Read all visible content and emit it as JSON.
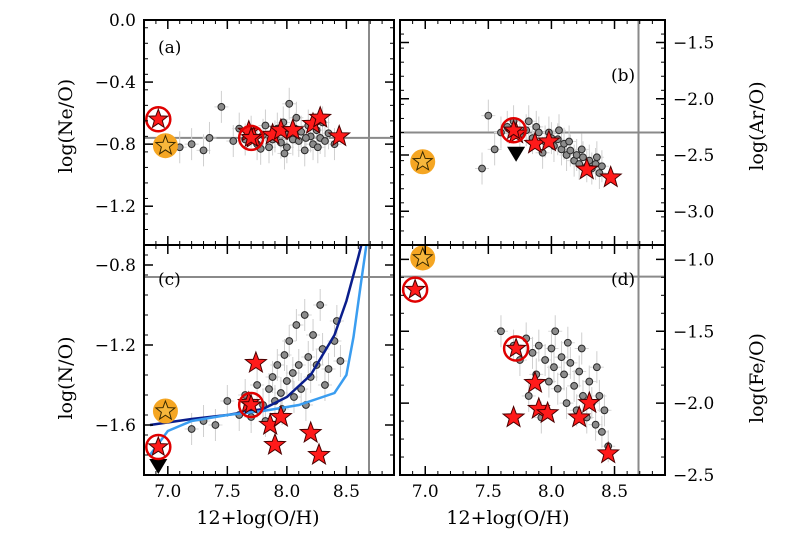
{
  "chart_data": [
    {
      "panel": "a",
      "type": "scatter",
      "letter": "(a)",
      "ylabel": "log(Ne/O)",
      "y_axis_side": "left",
      "xlim": [
        6.8,
        8.9
      ],
      "ylim": [
        -1.45,
        0.0
      ],
      "xticks": [
        7.0,
        7.5,
        8.0,
        8.5
      ],
      "yticks": [
        0.0,
        -0.4,
        -0.8,
        -1.2
      ],
      "ytick_labels": [
        "0.0",
        "−0.4",
        "−0.8",
        "−1.2"
      ],
      "hline": -0.76,
      "vline": 8.69,
      "sample": [
        [
          7.1,
          -0.82
        ],
        [
          7.2,
          -0.8
        ],
        [
          7.3,
          -0.84
        ],
        [
          7.35,
          -0.76
        ],
        [
          7.45,
          -0.56
        ],
        [
          7.55,
          -0.78
        ],
        [
          7.6,
          -0.7
        ],
        [
          7.65,
          -0.77
        ],
        [
          7.7,
          -0.72
        ],
        [
          7.75,
          -0.8
        ],
        [
          7.8,
          -0.74
        ],
        [
          7.82,
          -0.68
        ],
        [
          7.85,
          -0.82
        ],
        [
          7.9,
          -0.75
        ],
        [
          7.92,
          -0.7
        ],
        [
          7.95,
          -0.79
        ],
        [
          7.97,
          -0.66
        ],
        [
          8.0,
          -0.74
        ],
        [
          8.0,
          -0.82
        ],
        [
          8.02,
          -0.54
        ],
        [
          8.05,
          -0.77
        ],
        [
          8.07,
          -0.7
        ],
        [
          8.1,
          -0.78
        ],
        [
          8.12,
          -0.72
        ],
        [
          8.15,
          -0.84
        ],
        [
          8.18,
          -0.68
        ],
        [
          8.2,
          -0.75
        ],
        [
          8.22,
          -0.8
        ],
        [
          8.25,
          -0.71
        ],
        [
          8.28,
          -0.76
        ],
        [
          8.3,
          -0.66
        ],
        [
          8.32,
          -0.78
        ],
        [
          8.35,
          -0.73
        ],
        [
          8.4,
          -0.8
        ],
        [
          7.88,
          -0.77
        ],
        [
          7.78,
          -0.83
        ],
        [
          8.08,
          -0.63
        ],
        [
          8.16,
          -0.76
        ],
        [
          7.98,
          -0.86
        ],
        [
          8.26,
          -0.82
        ]
      ],
      "red_stars": [
        [
          7.68,
          -0.72
        ],
        [
          7.72,
          -0.76
        ],
        [
          7.88,
          -0.74
        ],
        [
          7.95,
          -0.71
        ],
        [
          8.05,
          -0.71
        ],
        [
          8.22,
          -0.67
        ],
        [
          8.28,
          -0.63
        ],
        [
          8.44,
          -0.75
        ]
      ],
      "red_circled": [
        [
          6.92,
          -0.64
        ],
        [
          7.7,
          -0.76
        ]
      ],
      "orange_circled": [
        [
          6.98,
          -0.81
        ]
      ]
    },
    {
      "panel": "b",
      "type": "scatter",
      "letter": "(b)",
      "ylabel": "log(Ar/O)",
      "y_axis_side": "right",
      "xlim": [
        6.8,
        8.9
      ],
      "ylim": [
        -3.3,
        -1.3
      ],
      "xticks": [
        7.0,
        7.5,
        8.0,
        8.5
      ],
      "yticks": [
        -1.5,
        -2.0,
        -2.5,
        -3.0
      ],
      "ytick_labels": [
        "−1.5",
        "−2.0",
        "−2.5",
        "−3.0"
      ],
      "hline": -2.3,
      "vline": 8.69,
      "sample": [
        [
          7.5,
          -2.15
        ],
        [
          7.6,
          -2.3
        ],
        [
          7.65,
          -2.25
        ],
        [
          7.7,
          -2.2
        ],
        [
          7.75,
          -2.32
        ],
        [
          7.8,
          -2.28
        ],
        [
          7.85,
          -2.35
        ],
        [
          7.88,
          -2.25
        ],
        [
          7.9,
          -2.3
        ],
        [
          7.95,
          -2.38
        ],
        [
          7.98,
          -2.3
        ],
        [
          8.0,
          -2.35
        ],
        [
          8.02,
          -2.42
        ],
        [
          8.05,
          -2.36
        ],
        [
          8.08,
          -2.45
        ],
        [
          8.1,
          -2.4
        ],
        [
          8.12,
          -2.5
        ],
        [
          8.15,
          -2.46
        ],
        [
          8.18,
          -2.55
        ],
        [
          8.2,
          -2.5
        ],
        [
          8.22,
          -2.58
        ],
        [
          8.25,
          -2.52
        ],
        [
          8.28,
          -2.6
        ],
        [
          8.3,
          -2.55
        ],
        [
          8.32,
          -2.62
        ],
        [
          8.35,
          -2.58
        ],
        [
          8.38,
          -2.66
        ],
        [
          8.4,
          -2.6
        ],
        [
          7.55,
          -2.45
        ],
        [
          7.82,
          -2.2
        ],
        [
          8.06,
          -2.28
        ],
        [
          8.14,
          -2.38
        ],
        [
          8.24,
          -2.45
        ],
        [
          7.93,
          -2.48
        ],
        [
          8.36,
          -2.52
        ],
        [
          7.45,
          -2.62
        ]
      ],
      "red_stars": [
        [
          7.72,
          -2.31
        ],
        [
          7.87,
          -2.4
        ],
        [
          7.98,
          -2.38
        ],
        [
          8.28,
          -2.63
        ],
        [
          8.47,
          -2.7
        ]
      ],
      "red_circled": [
        [
          7.7,
          -2.28
        ]
      ],
      "orange_circled": [
        [
          6.98,
          -2.56
        ]
      ],
      "upper_limits": [
        [
          7.72,
          -2.48
        ]
      ]
    },
    {
      "panel": "c",
      "type": "scatter",
      "letter": "(c)",
      "ylabel": "log(N/O)",
      "xlabel": "12+log(O/H)",
      "y_axis_side": "left",
      "xlim": [
        6.8,
        8.9
      ],
      "ylim": [
        -1.85,
        -0.7
      ],
      "xticks": [
        7.0,
        7.5,
        8.0,
        8.5
      ],
      "xtick_labels": [
        "7.0",
        "7.5",
        "8.0",
        "8.5"
      ],
      "yticks": [
        -0.8,
        -1.2,
        -1.6
      ],
      "ytick_labels": [
        "−0.8",
        "−1.2",
        "−1.6"
      ],
      "hline": -0.86,
      "vline": 8.69,
      "sample": [
        [
          7.2,
          -1.62
        ],
        [
          7.3,
          -1.58
        ],
        [
          7.4,
          -1.6
        ],
        [
          7.5,
          -1.48
        ],
        [
          7.6,
          -1.55
        ],
        [
          7.65,
          -1.45
        ],
        [
          7.7,
          -1.52
        ],
        [
          7.75,
          -1.4
        ],
        [
          7.8,
          -1.5
        ],
        [
          7.85,
          -1.42
        ],
        [
          7.88,
          -1.36
        ],
        [
          7.9,
          -1.48
        ],
        [
          7.92,
          -1.3
        ],
        [
          7.95,
          -1.44
        ],
        [
          7.98,
          -1.25
        ],
        [
          8.0,
          -1.38
        ],
        [
          8.02,
          -1.18
        ],
        [
          8.05,
          -1.34
        ],
        [
          8.08,
          -1.1
        ],
        [
          8.1,
          -1.3
        ],
        [
          8.12,
          -1.42
        ],
        [
          8.15,
          -1.05
        ],
        [
          8.18,
          -1.26
        ],
        [
          8.2,
          -1.36
        ],
        [
          8.22,
          -1.15
        ],
        [
          8.25,
          -1.3
        ],
        [
          8.28,
          -1.0
        ],
        [
          8.3,
          -1.22
        ],
        [
          8.35,
          -1.32
        ],
        [
          8.4,
          -1.18
        ],
        [
          8.42,
          -1.08
        ],
        [
          8.45,
          -1.28
        ],
        [
          7.82,
          -1.58
        ],
        [
          7.96,
          -1.52
        ],
        [
          8.06,
          -1.46
        ],
        [
          8.16,
          -1.5
        ],
        [
          8.32,
          -1.4
        ],
        [
          7.7,
          -1.56
        ]
      ],
      "red_stars": [
        [
          7.68,
          -1.49
        ],
        [
          7.74,
          -1.29
        ],
        [
          7.86,
          -1.6
        ],
        [
          7.9,
          -1.7
        ],
        [
          7.95,
          -1.56
        ],
        [
          8.2,
          -1.64
        ],
        [
          8.27,
          -1.75
        ]
      ],
      "red_circled": [
        [
          6.92,
          -1.71
        ],
        [
          7.7,
          -1.5
        ]
      ],
      "orange_circled": [
        [
          6.98,
          -1.53
        ]
      ],
      "upper_limits": [
        [
          6.92,
          -1.8
        ]
      ],
      "lines": [
        {
          "color": "#0a1e8c",
          "points": [
            [
              6.85,
              -1.6
            ],
            [
              7.2,
              -1.57
            ],
            [
              7.5,
              -1.55
            ],
            [
              7.8,
              -1.52
            ],
            [
              8.0,
              -1.46
            ],
            [
              8.2,
              -1.35
            ],
            [
              8.4,
              -1.15
            ],
            [
              8.5,
              -0.98
            ],
            [
              8.6,
              -0.76
            ],
            [
              8.66,
              -0.62
            ]
          ]
        },
        {
          "color": "#3a9df0",
          "points": [
            [
              6.85,
              -1.75
            ],
            [
              7.0,
              -1.63
            ],
            [
              7.2,
              -1.58
            ],
            [
              7.5,
              -1.55
            ],
            [
              7.8,
              -1.53
            ],
            [
              8.1,
              -1.5
            ],
            [
              8.4,
              -1.44
            ],
            [
              8.5,
              -1.35
            ],
            [
              8.56,
              -1.16
            ],
            [
              8.62,
              -0.9
            ],
            [
              8.68,
              -0.65
            ]
          ]
        }
      ]
    },
    {
      "panel": "d",
      "type": "scatter",
      "letter": "(d)",
      "ylabel": "log(Fe/O)",
      "xlabel": "12+log(O/H)",
      "y_axis_side": "right",
      "xlim": [
        6.8,
        8.9
      ],
      "ylim": [
        -2.5,
        -0.9
      ],
      "xticks": [
        7.0,
        7.5,
        8.0,
        8.5
      ],
      "xtick_labels": [
        "7.0",
        "7.5",
        "8.0",
        "8.5"
      ],
      "yticks": [
        -1.0,
        -1.5,
        -2.0,
        -2.5
      ],
      "ytick_labels": [
        "−1.0",
        "−1.5",
        "−2.0",
        "−2.5"
      ],
      "hline": -1.12,
      "vline": 8.69,
      "sample": [
        [
          7.6,
          -1.5
        ],
        [
          7.7,
          -1.6
        ],
        [
          7.75,
          -1.7
        ],
        [
          7.8,
          -1.55
        ],
        [
          7.85,
          -1.65
        ],
        [
          7.88,
          -1.8
        ],
        [
          7.9,
          -1.6
        ],
        [
          7.95,
          -1.7
        ],
        [
          7.98,
          -1.85
        ],
        [
          8.0,
          -1.62
        ],
        [
          8.02,
          -1.75
        ],
        [
          8.05,
          -1.9
        ],
        [
          8.08,
          -1.68
        ],
        [
          8.1,
          -1.8
        ],
        [
          8.12,
          -2.0
        ],
        [
          8.15,
          -1.72
        ],
        [
          8.18,
          -1.88
        ],
        [
          8.2,
          -2.05
        ],
        [
          8.22,
          -1.78
        ],
        [
          8.25,
          -1.95
        ],
        [
          8.28,
          -2.1
        ],
        [
          8.3,
          -1.85
        ],
        [
          8.32,
          -2.0
        ],
        [
          8.35,
          -2.15
        ],
        [
          8.38,
          -1.95
        ],
        [
          8.4,
          -2.2
        ],
        [
          8.42,
          -2.05
        ],
        [
          8.45,
          -2.3
        ],
        [
          7.82,
          -1.95
        ],
        [
          7.92,
          -2.1
        ],
        [
          8.03,
          -1.5
        ],
        [
          8.13,
          -1.58
        ],
        [
          8.24,
          -1.62
        ],
        [
          8.36,
          -1.75
        ]
      ],
      "red_stars": [
        [
          7.7,
          -2.1
        ],
        [
          7.87,
          -1.86
        ],
        [
          7.9,
          -2.04
        ],
        [
          7.97,
          -2.07
        ],
        [
          8.22,
          -2.1
        ],
        [
          8.3,
          -2.0
        ],
        [
          8.45,
          -2.35
        ]
      ],
      "red_circled": [
        [
          6.92,
          -1.21
        ],
        [
          7.72,
          -1.62
        ]
      ],
      "orange_circled": [
        [
          6.98,
          -0.99
        ]
      ]
    }
  ]
}
